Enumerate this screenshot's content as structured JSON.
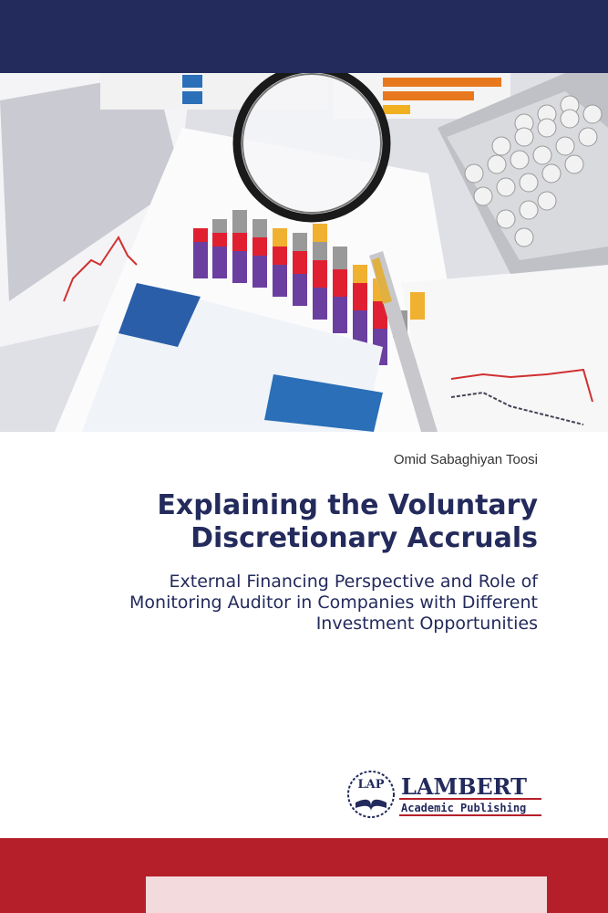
{
  "author": "Omid Sabaghiyan Toosi",
  "title": [
    "Explaining the Voluntary",
    "Discretionary Accruals"
  ],
  "subtitle": [
    "External Financing Perspective and Role of",
    "Monitoring Auditor in Companies with Different",
    "Investment Opportunities"
  ],
  "publisher": {
    "mark": "LAP",
    "name": "LAMBERT",
    "tagline": "Academic Publishing"
  }
}
